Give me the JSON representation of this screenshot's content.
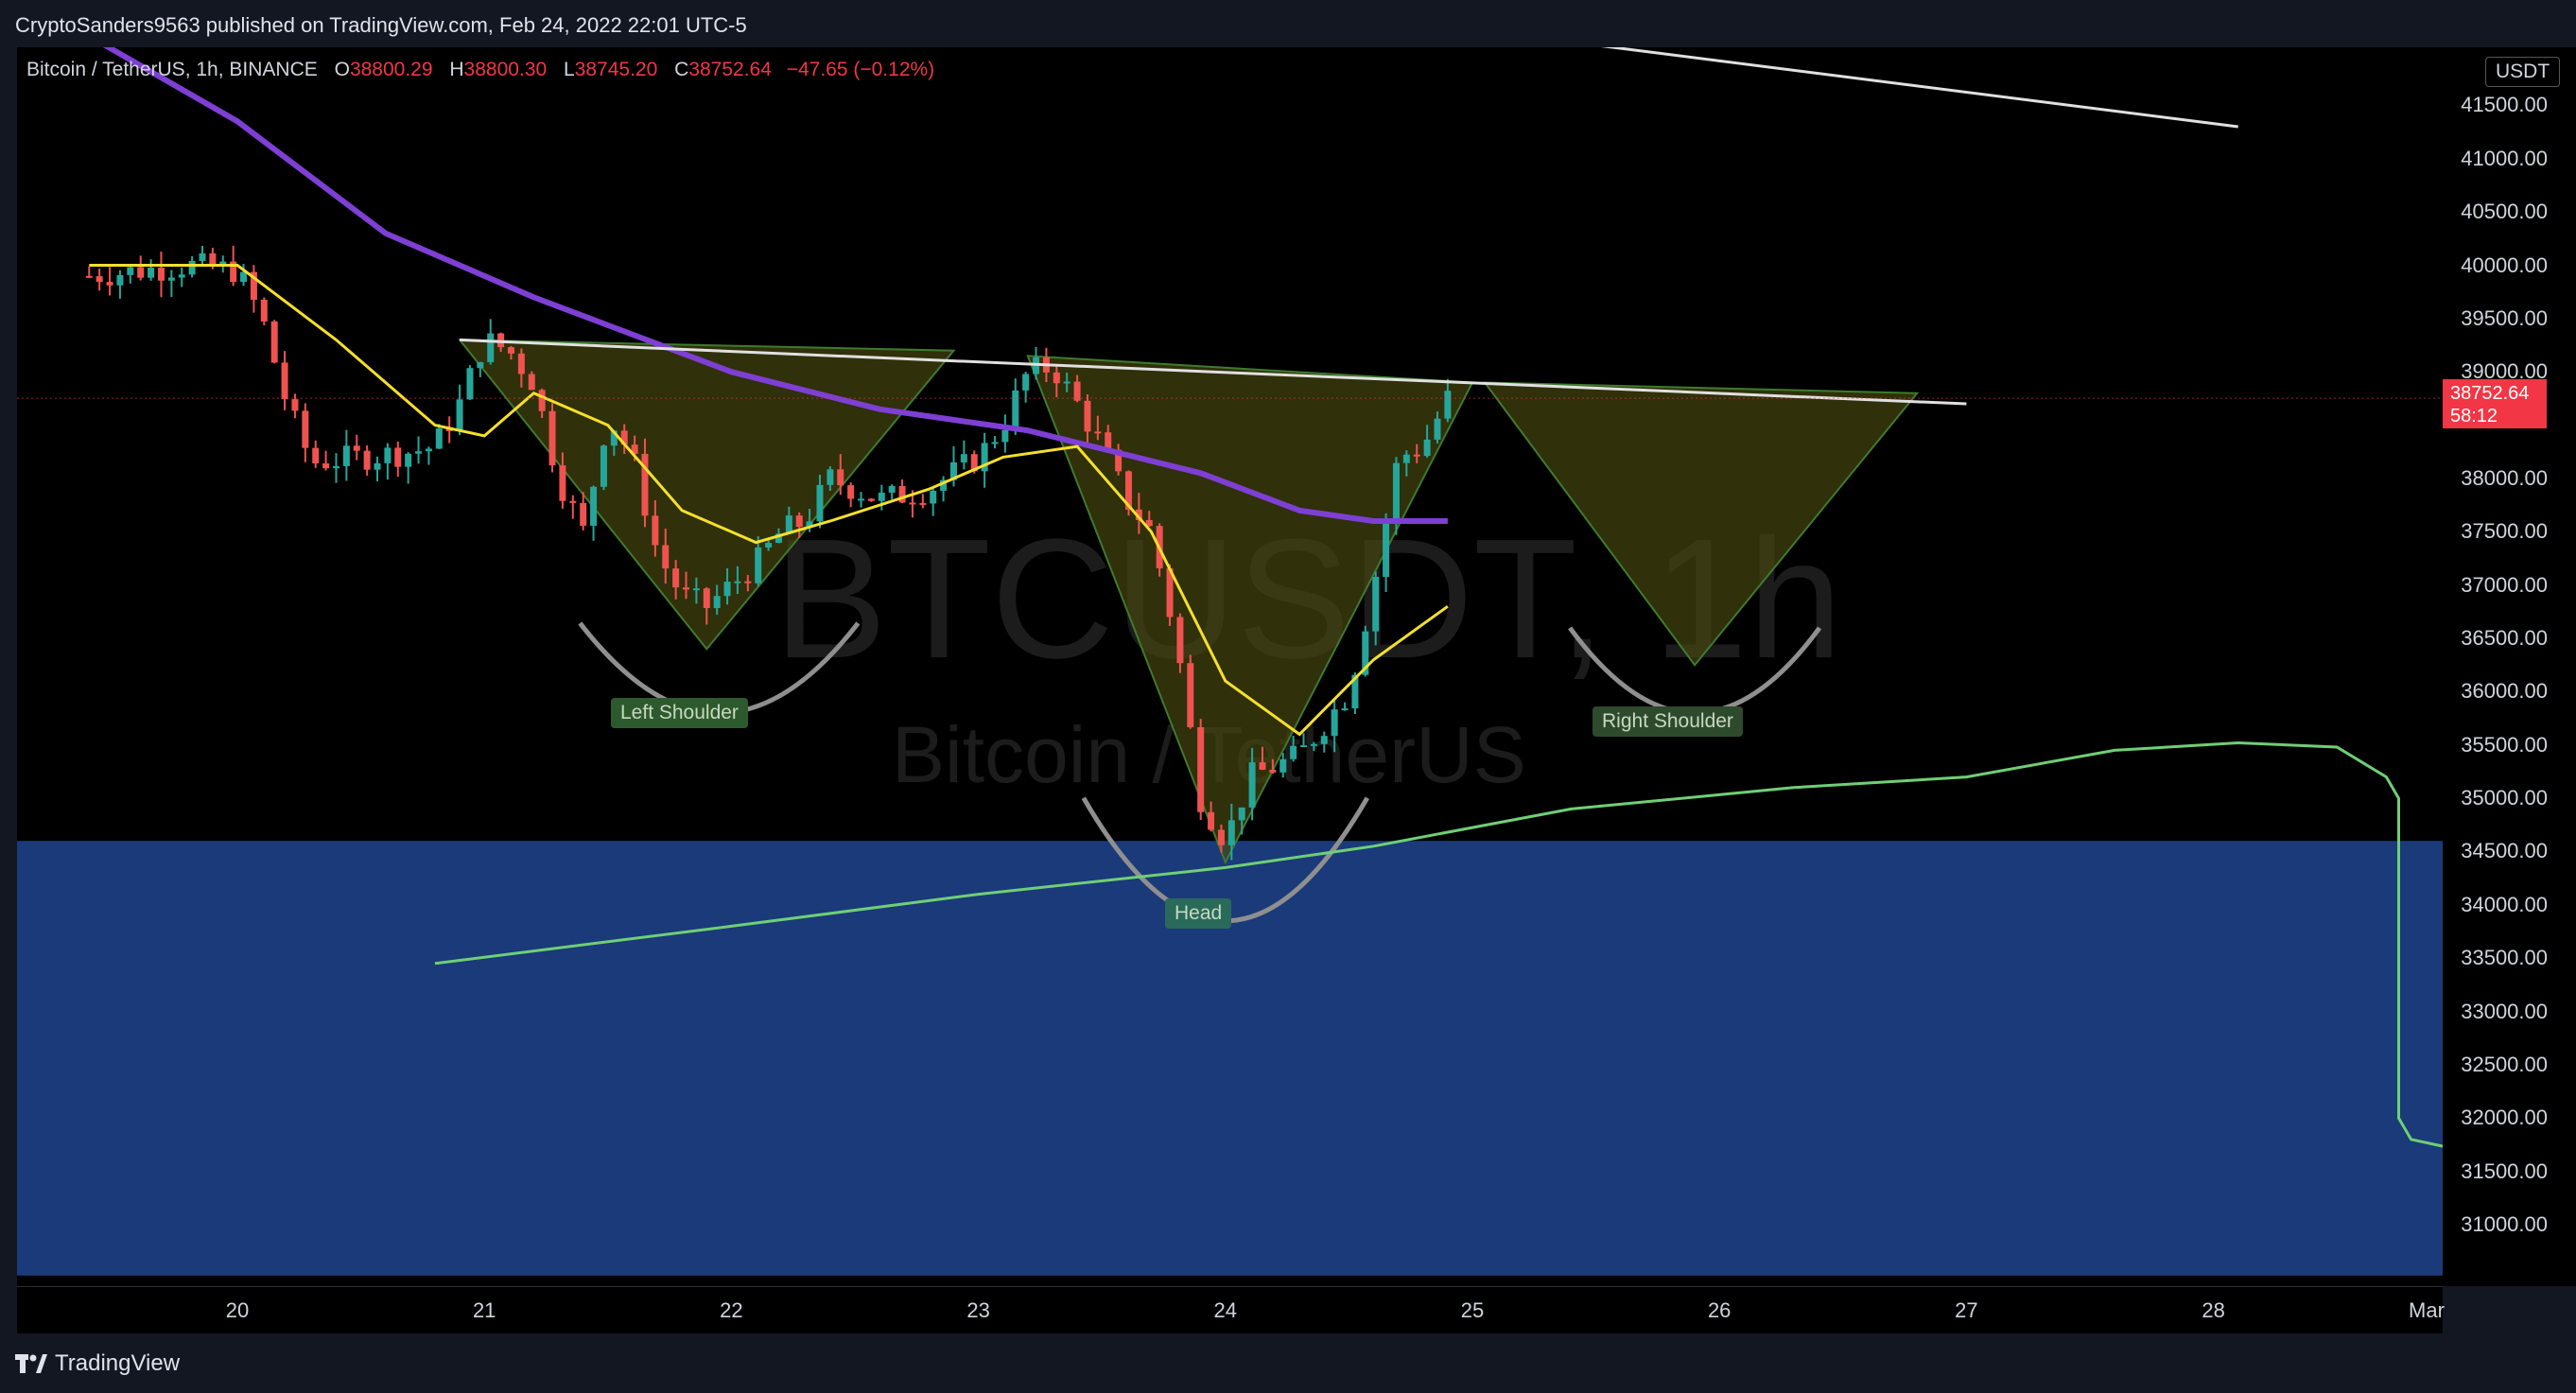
{
  "header": {
    "published_text": "CryptoSanders9563 published on TradingView.com, Feb 24, 2022 22:01 UTC-5"
  },
  "legend": {
    "symbol": "Bitcoin / TetherUS, 1h, BINANCE",
    "o_label": "O",
    "o": "38800.29",
    "h_label": "H",
    "h": "38800.30",
    "l_label": "L",
    "l": "38745.20",
    "c_label": "C",
    "c": "38752.64",
    "change": "−47.65 (−0.12%)"
  },
  "currency": "USDT",
  "last_price": {
    "price": "38752.64",
    "countdown": "58:12"
  },
  "watermark": {
    "ticker": "BTCUSDT, 1h",
    "name": "Bitcoin / TetherUS"
  },
  "pattern_labels": {
    "left_shoulder": "Left Shoulder",
    "head": "Head",
    "right_shoulder": "Right Shoulder"
  },
  "price_ticks": [
    "41500.00",
    "41000.00",
    "40500.00",
    "40000.00",
    "39500.00",
    "39000.00",
    "38000.00",
    "37500.00",
    "37000.00",
    "36500.00",
    "36000.00",
    "35500.00",
    "35000.00",
    "34500.00",
    "34000.00",
    "33500.00",
    "33000.00",
    "32500.00",
    "32000.00",
    "31500.00",
    "31000.00"
  ],
  "time_ticks": [
    "20",
    "21",
    "22",
    "23",
    "24",
    "25",
    "26",
    "27",
    "28",
    "Mar"
  ],
  "footer": {
    "brand": "TradingView"
  },
  "colors": {
    "up": "#26a69a",
    "down": "#ef5350",
    "ema_fast": "#f5e02a",
    "ema_slow": "#7e3fd4",
    "support_zone": "#1a3a7a",
    "green_curve": "#6fcf75",
    "neckline": "#e0e0e0",
    "pattern_fill": "#4a4a10"
  },
  "chart_data": {
    "type": "candlestick",
    "symbol": "BTCUSDT",
    "interval": "1h",
    "ylim": [
      30700,
      42200
    ],
    "x_ticks": [
      "20",
      "21",
      "22",
      "23",
      "24",
      "25",
      "26",
      "27",
      "28",
      "Mar"
    ],
    "close_path": [
      [
        19.4,
        39900
      ],
      [
        19.6,
        39950
      ],
      [
        19.8,
        40000
      ],
      [
        20.0,
        39950
      ],
      [
        20.1,
        39500
      ],
      [
        20.2,
        38700
      ],
      [
        20.3,
        38150
      ],
      [
        20.5,
        38200
      ],
      [
        20.7,
        38250
      ],
      [
        20.8,
        38300
      ],
      [
        20.9,
        38700
      ],
      [
        21.0,
        39300
      ],
      [
        21.1,
        39200
      ],
      [
        21.2,
        38900
      ],
      [
        21.3,
        38000
      ],
      [
        21.4,
        37500
      ],
      [
        21.5,
        38600
      ],
      [
        21.6,
        38200
      ],
      [
        21.7,
        37300
      ],
      [
        21.8,
        36900
      ],
      [
        21.9,
        36800
      ],
      [
        22.0,
        37000
      ],
      [
        22.1,
        37200
      ],
      [
        22.2,
        37500
      ],
      [
        22.3,
        37600
      ],
      [
        22.4,
        38000
      ],
      [
        22.6,
        37800
      ],
      [
        22.8,
        37900
      ],
      [
        23.0,
        38200
      ],
      [
        23.1,
        38500
      ],
      [
        23.2,
        39000
      ],
      [
        23.3,
        39050
      ],
      [
        23.4,
        38700
      ],
      [
        23.5,
        38300
      ],
      [
        23.6,
        37800
      ],
      [
        23.7,
        37500
      ],
      [
        23.8,
        36500
      ],
      [
        23.9,
        35000
      ],
      [
        24.0,
        34600
      ],
      [
        24.1,
        35200
      ],
      [
        24.2,
        35300
      ],
      [
        24.3,
        35400
      ],
      [
        24.4,
        35700
      ],
      [
        24.5,
        36000
      ],
      [
        24.6,
        37000
      ],
      [
        24.7,
        38200
      ],
      [
        24.8,
        38300
      ],
      [
        24.9,
        38750
      ]
    ],
    "ema_fast": [
      [
        19.4,
        40000
      ],
      [
        20.0,
        40000
      ],
      [
        20.4,
        39300
      ],
      [
        20.8,
        38500
      ],
      [
        21.0,
        38400
      ],
      [
        21.2,
        38800
      ],
      [
        21.5,
        38500
      ],
      [
        21.8,
        37700
      ],
      [
        22.1,
        37400
      ],
      [
        22.4,
        37600
      ],
      [
        22.8,
        37900
      ],
      [
        23.1,
        38200
      ],
      [
        23.4,
        38300
      ],
      [
        23.7,
        37500
      ],
      [
        24.0,
        36100
      ],
      [
        24.3,
        35600
      ],
      [
        24.6,
        36300
      ],
      [
        24.9,
        36800
      ]
    ],
    "ema_slow": [
      [
        19.4,
        42150
      ],
      [
        20.0,
        41350
      ],
      [
        20.6,
        40300
      ],
      [
        21.2,
        39700
      ],
      [
        22.0,
        39000
      ],
      [
        22.6,
        38650
      ],
      [
        23.2,
        38450
      ],
      [
        23.9,
        38050
      ],
      [
        24.3,
        37700
      ],
      [
        24.6,
        37600
      ],
      [
        24.9,
        37600
      ]
    ],
    "neckline": {
      "from": [
        20.9,
        39300
      ],
      "to": [
        27.0,
        38700
      ]
    },
    "upper_trendline": {
      "from": [
        24.7,
        42300
      ],
      "to": [
        28.1,
        41300
      ]
    },
    "support_zone": {
      "from": 30700,
      "to": 34600
    },
    "green_curve": [
      [
        20.8,
        33450
      ],
      [
        22.0,
        33800
      ],
      [
        23.0,
        34100
      ],
      [
        24.0,
        34350
      ],
      [
        24.6,
        34550
      ],
      [
        25.4,
        34900
      ],
      [
        26.3,
        35100
      ],
      [
        27.0,
        35200
      ],
      [
        27.6,
        35450
      ],
      [
        28.1,
        35520
      ],
      [
        28.5,
        35480
      ],
      [
        28.7,
        35200
      ],
      [
        28.75,
        35000
      ],
      [
        28.75,
        32000
      ],
      [
        28.8,
        31800
      ],
      [
        29.0,
        31700
      ],
      [
        29.1,
        31650
      ]
    ],
    "pattern_labels": [
      "Left Shoulder",
      "Head",
      "Right Shoulder"
    ]
  }
}
